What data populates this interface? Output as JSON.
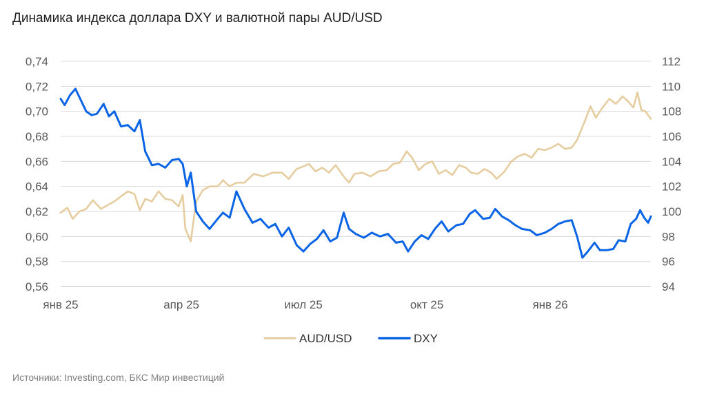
{
  "title": "Динамика индекса доллара DXY и валютной пары AUD/USD",
  "source": "Источники: Investing.com, БКС Мир инвестиций",
  "chart_data": {
    "type": "line",
    "title": "Динамика индекса доллара DXY и валютной пары AUD/USD",
    "x_ticks": [
      "янв 25",
      "апр 25",
      "июл 25",
      "окт 25",
      "янв 26"
    ],
    "x_tick_dates": [
      "2025-01-01",
      "2025-04-01",
      "2025-07-01",
      "2025-10-01",
      "2026-01-01"
    ],
    "x_range": [
      "2025-01-01",
      "2026-03-17"
    ],
    "left_axis": {
      "label": "",
      "ylim": [
        0.56,
        0.74
      ],
      "ticks": [
        "0,56",
        "0,58",
        "0,60",
        "0,62",
        "0,64",
        "0,66",
        "0,68",
        "0,70",
        "0,72",
        "0,74"
      ],
      "tick_values": [
        0.56,
        0.58,
        0.6,
        0.62,
        0.64,
        0.66,
        0.68,
        0.7,
        0.72,
        0.74
      ]
    },
    "right_axis": {
      "label": "",
      "ylim": [
        94,
        112
      ],
      "ticks": [
        "94",
        "96",
        "98",
        "100",
        "102",
        "104",
        "106",
        "108",
        "110",
        "112"
      ],
      "tick_values": [
        94,
        96,
        98,
        100,
        102,
        104,
        106,
        108,
        110,
        112
      ]
    },
    "grid": "horizontal",
    "legend": "bottom-center",
    "series": [
      {
        "name": "AUD/USD",
        "axis": "left",
        "color": "#E6CDA0",
        "points": [
          [
            "2025-01-01",
            0.619
          ],
          [
            "2025-01-06",
            0.623
          ],
          [
            "2025-01-10",
            0.614
          ],
          [
            "2025-01-15",
            0.62
          ],
          [
            "2025-01-20",
            0.622
          ],
          [
            "2025-01-25",
            0.629
          ],
          [
            "2025-01-31",
            0.622
          ],
          [
            "2025-02-05",
            0.625
          ],
          [
            "2025-02-10",
            0.628
          ],
          [
            "2025-02-15",
            0.632
          ],
          [
            "2025-02-20",
            0.636
          ],
          [
            "2025-02-25",
            0.634
          ],
          [
            "2025-03-01",
            0.621
          ],
          [
            "2025-03-05",
            0.63
          ],
          [
            "2025-03-10",
            0.628
          ],
          [
            "2025-03-15",
            0.636
          ],
          [
            "2025-03-20",
            0.63
          ],
          [
            "2025-03-25",
            0.629
          ],
          [
            "2025-03-30",
            0.624
          ],
          [
            "2025-04-02",
            0.633
          ],
          [
            "2025-04-04",
            0.606
          ],
          [
            "2025-04-08",
            0.596
          ],
          [
            "2025-04-12",
            0.628
          ],
          [
            "2025-04-17",
            0.637
          ],
          [
            "2025-04-22",
            0.64
          ],
          [
            "2025-04-28",
            0.64
          ],
          [
            "2025-05-02",
            0.645
          ],
          [
            "2025-05-07",
            0.64
          ],
          [
            "2025-05-12",
            0.643
          ],
          [
            "2025-05-18",
            0.643
          ],
          [
            "2025-05-25",
            0.65
          ],
          [
            "2025-06-01",
            0.648
          ],
          [
            "2025-06-08",
            0.651
          ],
          [
            "2025-06-15",
            0.651
          ],
          [
            "2025-06-20",
            0.646
          ],
          [
            "2025-06-26",
            0.654
          ],
          [
            "2025-07-01",
            0.656
          ],
          [
            "2025-07-05",
            0.658
          ],
          [
            "2025-07-10",
            0.652
          ],
          [
            "2025-07-15",
            0.655
          ],
          [
            "2025-07-20",
            0.651
          ],
          [
            "2025-07-25",
            0.657
          ],
          [
            "2025-07-31",
            0.648
          ],
          [
            "2025-08-04",
            0.643
          ],
          [
            "2025-08-08",
            0.65
          ],
          [
            "2025-08-14",
            0.651
          ],
          [
            "2025-08-20",
            0.648
          ],
          [
            "2025-08-26",
            0.652
          ],
          [
            "2025-09-01",
            0.653
          ],
          [
            "2025-09-06",
            0.658
          ],
          [
            "2025-09-11",
            0.659
          ],
          [
            "2025-09-16",
            0.668
          ],
          [
            "2025-09-20",
            0.663
          ],
          [
            "2025-09-25",
            0.653
          ],
          [
            "2025-09-30",
            0.658
          ],
          [
            "2025-10-05",
            0.66
          ],
          [
            "2025-10-10",
            0.65
          ],
          [
            "2025-10-15",
            0.653
          ],
          [
            "2025-10-20",
            0.649
          ],
          [
            "2025-10-25",
            0.657
          ],
          [
            "2025-10-30",
            0.655
          ],
          [
            "2025-11-03",
            0.651
          ],
          [
            "2025-11-08",
            0.65
          ],
          [
            "2025-11-13",
            0.654
          ],
          [
            "2025-11-18",
            0.651
          ],
          [
            "2025-11-22",
            0.646
          ],
          [
            "2025-11-28",
            0.652
          ],
          [
            "2025-12-03",
            0.66
          ],
          [
            "2025-12-08",
            0.664
          ],
          [
            "2025-12-13",
            0.666
          ],
          [
            "2025-12-18",
            0.663
          ],
          [
            "2025-12-23",
            0.67
          ],
          [
            "2025-12-28",
            0.669
          ],
          [
            "2026-01-02",
            0.671
          ],
          [
            "2026-01-07",
            0.674
          ],
          [
            "2026-01-12",
            0.67
          ],
          [
            "2026-01-17",
            0.671
          ],
          [
            "2026-01-21",
            0.677
          ],
          [
            "2026-01-26",
            0.69
          ],
          [
            "2026-01-31",
            0.704
          ],
          [
            "2026-02-04",
            0.695
          ],
          [
            "2026-02-09",
            0.703
          ],
          [
            "2026-02-14",
            0.71
          ],
          [
            "2026-02-19",
            0.706
          ],
          [
            "2026-02-24",
            0.712
          ],
          [
            "2026-02-28",
            0.708
          ],
          [
            "2026-03-04",
            0.703
          ],
          [
            "2026-03-07",
            0.715
          ],
          [
            "2026-03-10",
            0.701
          ],
          [
            "2026-03-13",
            0.7
          ],
          [
            "2026-03-17",
            0.694
          ]
        ]
      },
      {
        "name": "DXY",
        "axis": "right",
        "color": "#0A64E6",
        "points": [
          [
            "2025-01-01",
            109.0
          ],
          [
            "2025-01-04",
            108.5
          ],
          [
            "2025-01-08",
            109.3
          ],
          [
            "2025-01-12",
            109.8
          ],
          [
            "2025-01-16",
            108.9
          ],
          [
            "2025-01-20",
            108.0
          ],
          [
            "2025-01-24",
            107.7
          ],
          [
            "2025-01-28",
            107.8
          ],
          [
            "2025-02-02",
            108.6
          ],
          [
            "2025-02-06",
            107.6
          ],
          [
            "2025-02-10",
            108.0
          ],
          [
            "2025-02-15",
            106.8
          ],
          [
            "2025-02-20",
            106.9
          ],
          [
            "2025-02-25",
            106.4
          ],
          [
            "2025-03-01",
            107.3
          ],
          [
            "2025-03-05",
            104.8
          ],
          [
            "2025-03-10",
            103.7
          ],
          [
            "2025-03-15",
            103.8
          ],
          [
            "2025-03-20",
            103.5
          ],
          [
            "2025-03-25",
            104.1
          ],
          [
            "2025-03-30",
            104.2
          ],
          [
            "2025-04-02",
            103.8
          ],
          [
            "2025-04-05",
            102.0
          ],
          [
            "2025-04-08",
            103.1
          ],
          [
            "2025-04-12",
            100.0
          ],
          [
            "2025-04-17",
            99.2
          ],
          [
            "2025-04-22",
            98.6
          ],
          [
            "2025-04-28",
            99.4
          ],
          [
            "2025-05-02",
            99.9
          ],
          [
            "2025-05-07",
            99.5
          ],
          [
            "2025-05-12",
            101.6
          ],
          [
            "2025-05-18",
            100.2
          ],
          [
            "2025-05-24",
            99.1
          ],
          [
            "2025-05-30",
            99.4
          ],
          [
            "2025-06-05",
            98.7
          ],
          [
            "2025-06-10",
            99.0
          ],
          [
            "2025-06-15",
            98.0
          ],
          [
            "2025-06-20",
            98.7
          ],
          [
            "2025-06-26",
            97.3
          ],
          [
            "2025-07-01",
            96.8
          ],
          [
            "2025-07-06",
            97.4
          ],
          [
            "2025-07-11",
            97.8
          ],
          [
            "2025-07-16",
            98.5
          ],
          [
            "2025-07-21",
            97.6
          ],
          [
            "2025-07-26",
            97.9
          ],
          [
            "2025-07-31",
            99.9
          ],
          [
            "2025-08-04",
            98.6
          ],
          [
            "2025-08-09",
            98.2
          ],
          [
            "2025-08-15",
            97.9
          ],
          [
            "2025-08-21",
            98.3
          ],
          [
            "2025-08-27",
            98.0
          ],
          [
            "2025-09-02",
            98.2
          ],
          [
            "2025-09-08",
            97.5
          ],
          [
            "2025-09-13",
            97.6
          ],
          [
            "2025-09-17",
            96.8
          ],
          [
            "2025-09-22",
            97.6
          ],
          [
            "2025-09-27",
            98.1
          ],
          [
            "2025-10-02",
            97.8
          ],
          [
            "2025-10-07",
            98.6
          ],
          [
            "2025-10-12",
            99.2
          ],
          [
            "2025-10-17",
            98.4
          ],
          [
            "2025-10-23",
            98.9
          ],
          [
            "2025-10-28",
            99.0
          ],
          [
            "2025-11-02",
            99.8
          ],
          [
            "2025-11-06",
            100.1
          ],
          [
            "2025-11-12",
            99.4
          ],
          [
            "2025-11-17",
            99.5
          ],
          [
            "2025-11-21",
            100.2
          ],
          [
            "2025-11-26",
            99.6
          ],
          [
            "2025-12-01",
            99.3
          ],
          [
            "2025-12-06",
            98.9
          ],
          [
            "2025-12-11",
            98.6
          ],
          [
            "2025-12-17",
            98.5
          ],
          [
            "2025-12-22",
            98.1
          ],
          [
            "2025-12-28",
            98.3
          ],
          [
            "2026-01-02",
            98.6
          ],
          [
            "2026-01-07",
            99.0
          ],
          [
            "2026-01-12",
            99.2
          ],
          [
            "2026-01-17",
            99.3
          ],
          [
            "2026-01-21",
            98.0
          ],
          [
            "2026-01-25",
            96.3
          ],
          [
            "2026-01-29",
            96.8
          ],
          [
            "2026-02-03",
            97.5
          ],
          [
            "2026-02-07",
            96.9
          ],
          [
            "2026-02-12",
            96.9
          ],
          [
            "2026-02-17",
            97.0
          ],
          [
            "2026-02-21",
            97.7
          ],
          [
            "2026-02-26",
            97.6
          ],
          [
            "2026-03-02",
            99.0
          ],
          [
            "2026-03-06",
            99.4
          ],
          [
            "2026-03-09",
            100.1
          ],
          [
            "2026-03-12",
            99.5
          ],
          [
            "2026-03-15",
            99.1
          ],
          [
            "2026-03-17",
            99.6
          ]
        ]
      }
    ]
  }
}
